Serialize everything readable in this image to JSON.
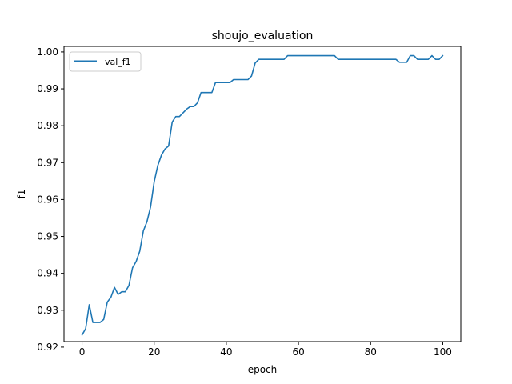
{
  "chart_data": {
    "type": "line",
    "title": "shoujo_evaluation",
    "xlabel": "epoch",
    "ylabel": "f1",
    "xlim": [
      -5,
      105
    ],
    "ylim": [
      0.9215,
      1.0015
    ],
    "xticks": [
      0,
      20,
      40,
      60,
      80,
      100
    ],
    "yticks": [
      0.92,
      0.93,
      0.94,
      0.95,
      0.96,
      0.97,
      0.98,
      0.99,
      1.0
    ],
    "ytick_labels": [
      "0.92",
      "0.93",
      "0.94",
      "0.95",
      "0.96",
      "0.97",
      "0.98",
      "0.99",
      "1.00"
    ],
    "legend_position": "top-left",
    "grid": false,
    "color": "#1f77b4",
    "series": [
      {
        "name": "val_f1",
        "x": [
          0,
          1,
          2,
          3,
          4,
          5,
          6,
          7,
          8,
          9,
          10,
          11,
          12,
          13,
          14,
          15,
          16,
          17,
          18,
          19,
          20,
          21,
          22,
          23,
          24,
          25,
          26,
          27,
          28,
          29,
          30,
          31,
          32,
          33,
          34,
          35,
          36,
          37,
          38,
          39,
          40,
          41,
          42,
          43,
          44,
          45,
          46,
          47,
          48,
          49,
          50,
          51,
          52,
          53,
          54,
          55,
          56,
          57,
          58,
          59,
          60,
          61,
          62,
          63,
          64,
          65,
          66,
          67,
          68,
          69,
          70,
          71,
          72,
          73,
          74,
          75,
          76,
          77,
          78,
          79,
          80,
          81,
          82,
          83,
          84,
          85,
          86,
          87,
          88,
          89,
          90,
          91,
          92,
          93,
          94,
          95,
          96,
          97,
          98,
          99,
          100
        ],
        "values": [
          0.9233,
          0.925,
          0.9315,
          0.9267,
          0.9267,
          0.9267,
          0.9275,
          0.9322,
          0.9335,
          0.9362,
          0.9343,
          0.935,
          0.935,
          0.9367,
          0.9415,
          0.9432,
          0.946,
          0.9515,
          0.954,
          0.958,
          0.9648,
          0.9692,
          0.972,
          0.9737,
          0.9745,
          0.981,
          0.9825,
          0.9825,
          0.9835,
          0.9845,
          0.9852,
          0.9852,
          0.9862,
          0.989,
          0.989,
          0.989,
          0.989,
          0.9917,
          0.9917,
          0.9917,
          0.9917,
          0.9917,
          0.9925,
          0.9925,
          0.9925,
          0.9925,
          0.9925,
          0.9935,
          0.997,
          0.998,
          0.998,
          0.998,
          0.998,
          0.998,
          0.998,
          0.998,
          0.998,
          0.999,
          0.999,
          0.999,
          0.999,
          0.999,
          0.999,
          0.999,
          0.999,
          0.999,
          0.999,
          0.999,
          0.999,
          0.999,
          0.999,
          0.998,
          0.998,
          0.998,
          0.998,
          0.998,
          0.998,
          0.998,
          0.998,
          0.998,
          0.998,
          0.998,
          0.998,
          0.998,
          0.998,
          0.998,
          0.998,
          0.998,
          0.9972,
          0.9972,
          0.9972,
          0.999,
          0.999,
          0.998,
          0.998,
          0.998,
          0.998,
          0.999,
          0.998,
          0.998,
          0.999
        ]
      }
    ]
  }
}
